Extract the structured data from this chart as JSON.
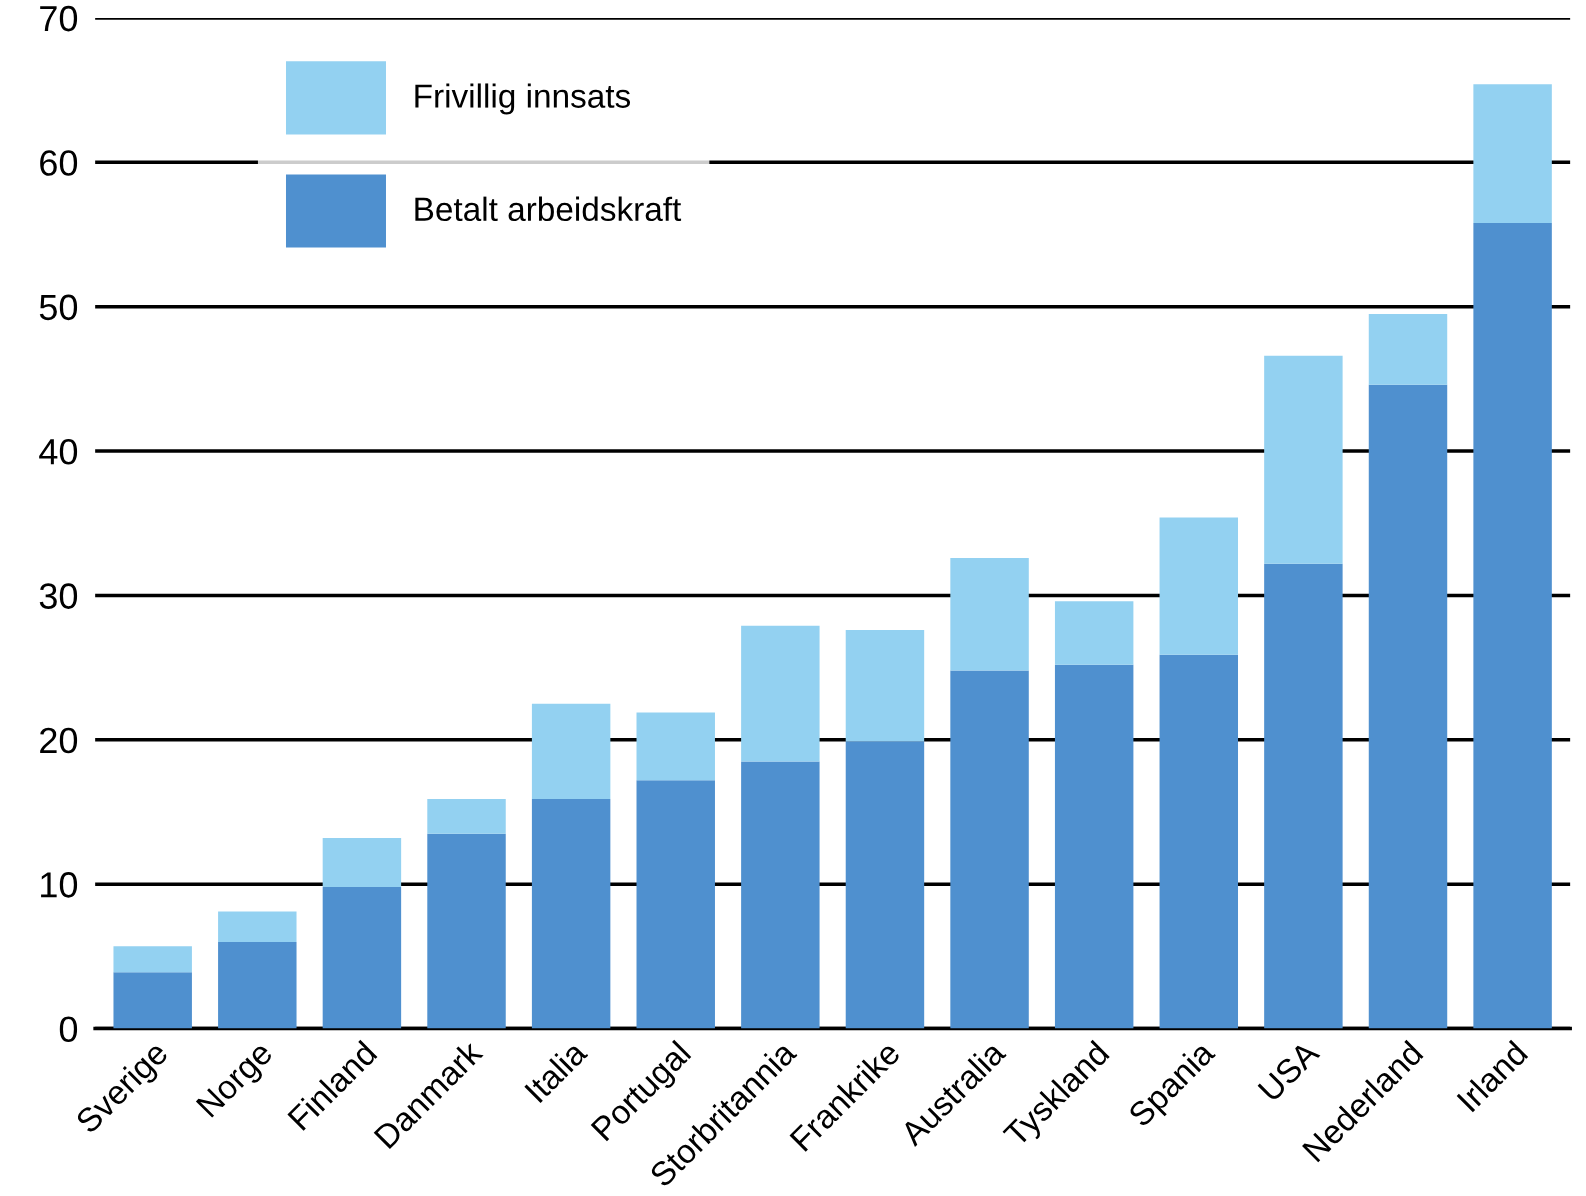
{
  "chart_data": {
    "type": "bar",
    "stacked": true,
    "categories": [
      "Sverige",
      "Norge",
      "Finland",
      "Danmark",
      "Italia",
      "Portugal",
      "Storbritannia",
      "Frankrike",
      "Australia",
      "Tyskland",
      "Spania",
      "USA",
      "Nederland",
      "Irland"
    ],
    "series": [
      {
        "name": "Betalt arbeidskraft",
        "color": "#4f90cf",
        "values": [
          3.9,
          6.0,
          9.8,
          13.5,
          15.9,
          17.2,
          18.5,
          19.9,
          24.8,
          25.2,
          25.9,
          32.2,
          44.6,
          55.8
        ]
      },
      {
        "name": "Frivillig innsats",
        "color": "#93d1f1",
        "values": [
          1.8,
          2.1,
          3.4,
          2.4,
          6.6,
          4.7,
          9.4,
          7.7,
          7.8,
          4.4,
          9.5,
          14.4,
          4.9,
          9.6
        ]
      }
    ],
    "ylim": [
      0,
      70
    ],
    "yticks": [
      0,
      10,
      20,
      30,
      40,
      50,
      60,
      70
    ],
    "grid": "y",
    "legend": "top left"
  }
}
